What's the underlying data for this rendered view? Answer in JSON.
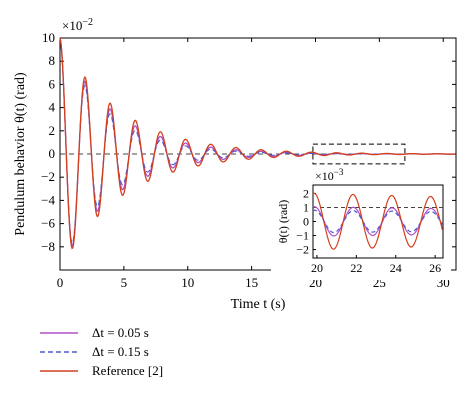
{
  "chart_data": {
    "type": "line",
    "xlabel": "Time t (s)",
    "ylabel": "Pendulum behavior θ(t) (rad)",
    "y_multiplier": "×10",
    "y_multiplier_exp": "−2",
    "xlim": [
      0,
      31
    ],
    "ylim": [
      -10,
      10
    ],
    "xticks": [
      0,
      5,
      10,
      15,
      20,
      25,
      30
    ],
    "yticks": [
      -8,
      -6,
      -4,
      -2,
      0,
      2,
      4,
      6,
      8,
      10
    ],
    "ytick_labels": [
      "−8",
      "−6",
      "−4",
      "−2",
      "0",
      "2",
      "4",
      "6",
      "8",
      "10"
    ],
    "grid": false,
    "reference_line": {
      "y": 0,
      "style": "dashed",
      "color": "#444444"
    },
    "zoom_region": {
      "x": [
        19.8,
        27.0
      ],
      "y": [
        -0.85,
        0.85
      ]
    },
    "series": [
      {
        "name": "Δt = 0.05 s",
        "color": "#b050c8",
        "style": "solid",
        "x": [
          0,
          0.5,
          1,
          1.5,
          2,
          2.5,
          3,
          3.5,
          4,
          4.5,
          5,
          6,
          7,
          8,
          9,
          10,
          12,
          14,
          16,
          18,
          20,
          22,
          24,
          26,
          28,
          30,
          31
        ],
        "y": [
          10,
          3.3,
          -8.0,
          -2.2,
          6.5,
          2.0,
          -5.2,
          -1.6,
          4.2,
          1.2,
          3.0,
          -2.6,
          2.0,
          -1.6,
          1.3,
          0.9,
          0.6,
          0.45,
          0.3,
          0.2,
          0.12,
          0.08,
          0.05,
          0.03,
          0.02,
          0.01,
          0.0
        ]
      },
      {
        "name": "Δt = 0.15 s",
        "color": "#4a5bd0",
        "style": "dashed",
        "x": [
          0,
          0.5,
          1,
          1.5,
          2,
          2.5,
          3,
          3.5,
          4,
          4.5,
          5,
          6,
          7,
          8,
          9,
          10,
          12,
          14,
          16,
          18,
          20,
          22,
          24,
          26,
          28,
          30,
          31
        ],
        "y": [
          10,
          3.1,
          -7.8,
          -2.0,
          6.1,
          1.8,
          -4.8,
          -1.4,
          3.8,
          1.0,
          2.6,
          -2.2,
          1.7,
          -1.3,
          1.0,
          0.7,
          0.45,
          0.3,
          0.2,
          0.12,
          0.07,
          0.04,
          0.025,
          0.015,
          0.01,
          0.005,
          0.0
        ]
      },
      {
        "name": "Reference [2]",
        "color": "#d2401e",
        "style": "solid",
        "x": [
          0,
          0.5,
          1,
          1.5,
          2,
          2.5,
          3,
          3.5,
          4,
          4.5,
          5,
          6,
          7,
          8,
          9,
          10,
          12,
          14,
          16,
          18,
          20,
          22,
          24,
          26,
          28,
          30,
          31
        ],
        "y": [
          10,
          3.5,
          -8.3,
          -2.4,
          7.0,
          2.2,
          -5.6,
          -1.8,
          4.8,
          1.4,
          3.4,
          -3.0,
          2.4,
          -2.0,
          1.6,
          1.2,
          0.85,
          0.6,
          0.42,
          0.3,
          0.2,
          0.15,
          0.11,
          0.08,
          0.05,
          0.03,
          0.02
        ]
      }
    ],
    "inset": {
      "ylabel": "θ(t) (rad)",
      "y_multiplier": "×10",
      "y_multiplier_exp": "−3",
      "xlim": [
        19.8,
        26.4
      ],
      "ylim": [
        -2.6,
        2.6
      ],
      "xticks": [
        20,
        22,
        24,
        26
      ],
      "yticks": [
        -2,
        -1,
        0,
        1,
        2
      ],
      "ytick_labels": [
        "−2",
        "−1",
        "0",
        "1",
        "2"
      ],
      "reference_line": {
        "y": 1,
        "style": "dashed"
      },
      "series": [
        {
          "name": "Δt = 0.05 s",
          "amp": 1.05,
          "phase": 0.4,
          "offset": 0.3
        },
        {
          "name": "Δt = 0.15 s",
          "amp": 0.8,
          "phase": 0.4,
          "offset": 0.25
        },
        {
          "name": "Reference [2]",
          "amp": 2.0,
          "phase": 0.45,
          "offset": 0.3
        }
      ]
    },
    "legend": [
      "Δt = 0.05 s",
      "Δt = 0.15 s",
      "Reference [2]"
    ],
    "legend_position": "bottom-left"
  }
}
